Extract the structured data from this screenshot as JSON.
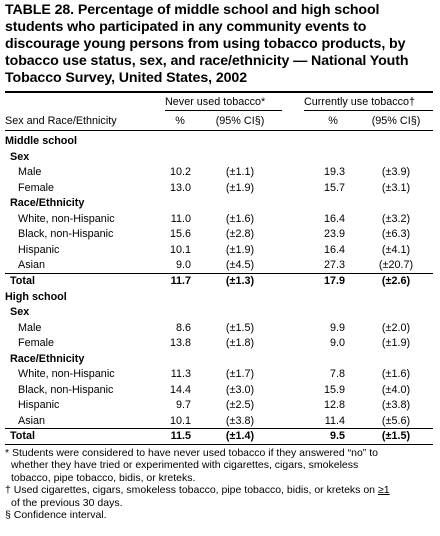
{
  "title_lines": [
    "TABLE 28. Percentage of middle school and high school",
    "students who participated in any community events to",
    "discourage young persons from using tobacco products, by",
    "tobacco use status, sex, and race/ethnicity — National Youth",
    "Tobacco Survey, United States, 2002"
  ],
  "header": {
    "group_never": "Never used tobacco*",
    "group_current": "Currently use tobacco†",
    "col_label": "Sex and Race/Ethnicity",
    "pct": "%",
    "ci": "(95% CI§)"
  },
  "rows": [
    {
      "label": "Middle school",
      "kind": "section"
    },
    {
      "label": "Sex",
      "kind": "group"
    },
    {
      "label": "Male",
      "kind": "data",
      "never_pct": "10.2",
      "never_ci": "(±1.1)",
      "cur_pct": "19.3",
      "cur_ci": "(±3.9)"
    },
    {
      "label": "Female",
      "kind": "data",
      "never_pct": "13.0",
      "never_ci": "(±1.9)",
      "cur_pct": "15.7",
      "cur_ci": "(±3.1)"
    },
    {
      "label": "Race/Ethnicity",
      "kind": "group"
    },
    {
      "label": "White, non-Hispanic",
      "kind": "data",
      "never_pct": "11.0",
      "never_ci": "(±1.6)",
      "cur_pct": "16.4",
      "cur_ci": "(±3.2)"
    },
    {
      "label": "Black, non-Hispanic",
      "kind": "data",
      "never_pct": "15.6",
      "never_ci": "(±2.8)",
      "cur_pct": "23.9",
      "cur_ci": "(±6.3)"
    },
    {
      "label": "Hispanic",
      "kind": "data",
      "never_pct": "10.1",
      "never_ci": "(±1.9)",
      "cur_pct": "16.4",
      "cur_ci": "(±4.1)"
    },
    {
      "label": "Asian",
      "kind": "data",
      "never_pct": "9.0",
      "never_ci": "(±4.5)",
      "cur_pct": "27.3",
      "cur_ci": "(±20.7)"
    },
    {
      "label": "Total",
      "kind": "total",
      "never_pct": "11.7",
      "never_ci": "(±1.3)",
      "cur_pct": "17.9",
      "cur_ci": "(±2.6)"
    },
    {
      "label": "High school",
      "kind": "section"
    },
    {
      "label": "Sex",
      "kind": "group"
    },
    {
      "label": "Male",
      "kind": "data",
      "never_pct": "8.6",
      "never_ci": "(±1.5)",
      "cur_pct": "9.9",
      "cur_ci": "(±2.0)"
    },
    {
      "label": "Female",
      "kind": "data",
      "never_pct": "13.8",
      "never_ci": "(±1.8)",
      "cur_pct": "9.0",
      "cur_ci": "(±1.9)"
    },
    {
      "label": "Race/Ethnicity",
      "kind": "group"
    },
    {
      "label": "White, non-Hispanic",
      "kind": "data",
      "never_pct": "11.3",
      "never_ci": "(±1.7)",
      "cur_pct": "7.8",
      "cur_ci": "(±1.6)"
    },
    {
      "label": "Black, non-Hispanic",
      "kind": "data",
      "never_pct": "14.4",
      "never_ci": "(±3.0)",
      "cur_pct": "15.9",
      "cur_ci": "(±4.0)"
    },
    {
      "label": "Hispanic",
      "kind": "data",
      "never_pct": "9.7",
      "never_ci": "(±2.5)",
      "cur_pct": "12.8",
      "cur_ci": "(±3.8)"
    },
    {
      "label": "Asian",
      "kind": "data",
      "never_pct": "10.1",
      "never_ci": "(±3.8)",
      "cur_pct": "11.4",
      "cur_ci": "(±5.6)"
    },
    {
      "label": "Total",
      "kind": "total",
      "never_pct": "11.5",
      "never_ci": "(±1.4)",
      "cur_pct": "9.5",
      "cur_ci": "(±1.5)"
    }
  ],
  "footnotes": {
    "star": [
      "* Students were considered to have never used tobacco if they answered “no” to",
      "whether they have tried or experimented with cigarettes, cigars, smokeless",
      "tobacco, pipe tobacco, bidis, or kreteks."
    ],
    "dagger_a": "† Used cigarettes, cigars, smokeless tobacco, pipe tobacco, bidis, or kreteks on ",
    "dagger_ge": "≥1",
    "dagger_b": "of the previous 30 days.",
    "section": "§ Confidence interval."
  }
}
